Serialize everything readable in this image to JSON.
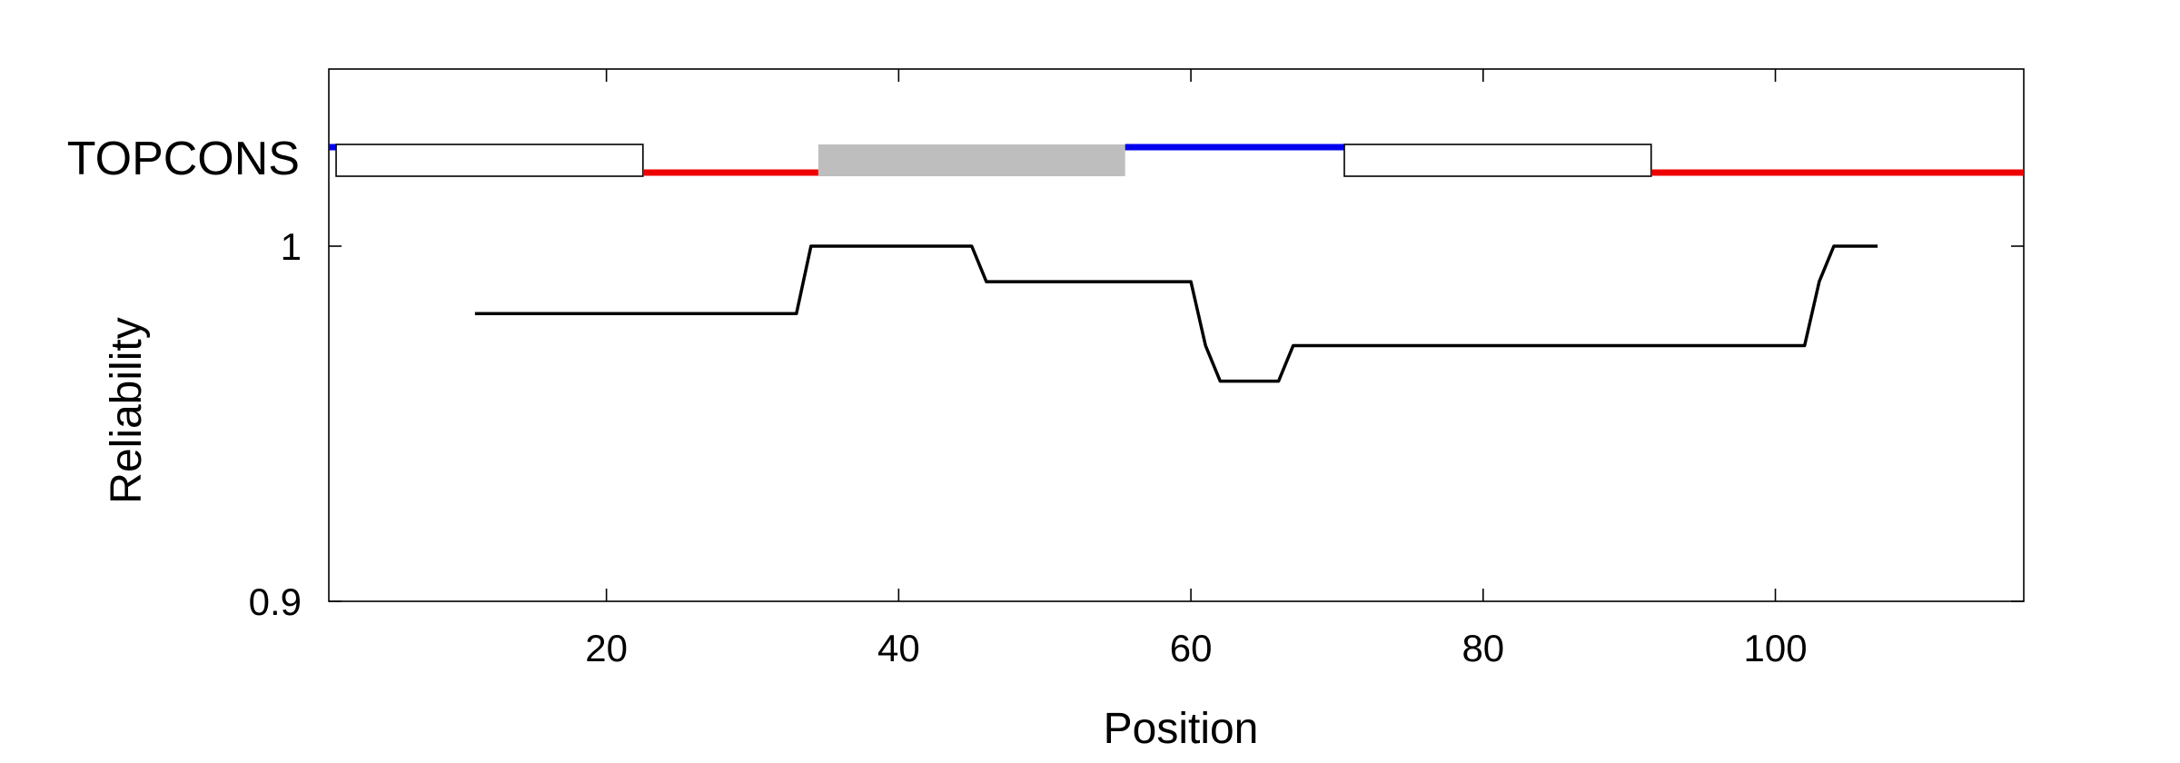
{
  "chart_data": {
    "type": "line",
    "track_label": "TOPCONS",
    "xlabel": "Position",
    "ylabel": "Reliability",
    "xlim": [
      1,
      117
    ],
    "ylim": [
      0.9,
      1.0
    ],
    "x_ticks": [
      20,
      40,
      60,
      80,
      100
    ],
    "y_ticks": [
      0.9,
      1
    ],
    "y_tick_labels": [
      "0.9",
      "1"
    ],
    "grid": false,
    "topology": [
      {
        "type": "inside",
        "start": 1,
        "end": 1.5
      },
      {
        "type": "tm_in_out",
        "start": 1.5,
        "end": 22.5
      },
      {
        "type": "outside",
        "start": 22.5,
        "end": 34.5
      },
      {
        "type": "reentrant",
        "start": 34.5,
        "end": 55.5
      },
      {
        "type": "inside",
        "start": 55.5,
        "end": 70.5
      },
      {
        "type": "tm_in_out",
        "start": 70.5,
        "end": 91.5
      },
      {
        "type": "outside",
        "start": 91.5,
        "end": 117
      }
    ],
    "series": [
      {
        "x": [
          11,
          33,
          34,
          45,
          46,
          60,
          61,
          62,
          66,
          67,
          102,
          103,
          104,
          107
        ],
        "y": [
          0.981,
          0.981,
          1.0,
          1.0,
          0.99,
          0.99,
          0.972,
          0.962,
          0.962,
          0.972,
          0.972,
          0.99,
          1.0,
          1.0
        ]
      }
    ],
    "colors": {
      "inside": "#0000ee",
      "outside": "#ee0000",
      "tm_box_fill": "#ffffff",
      "reentrant_fill": "#bebebe",
      "line": "#000000",
      "frame": "#000000"
    }
  }
}
